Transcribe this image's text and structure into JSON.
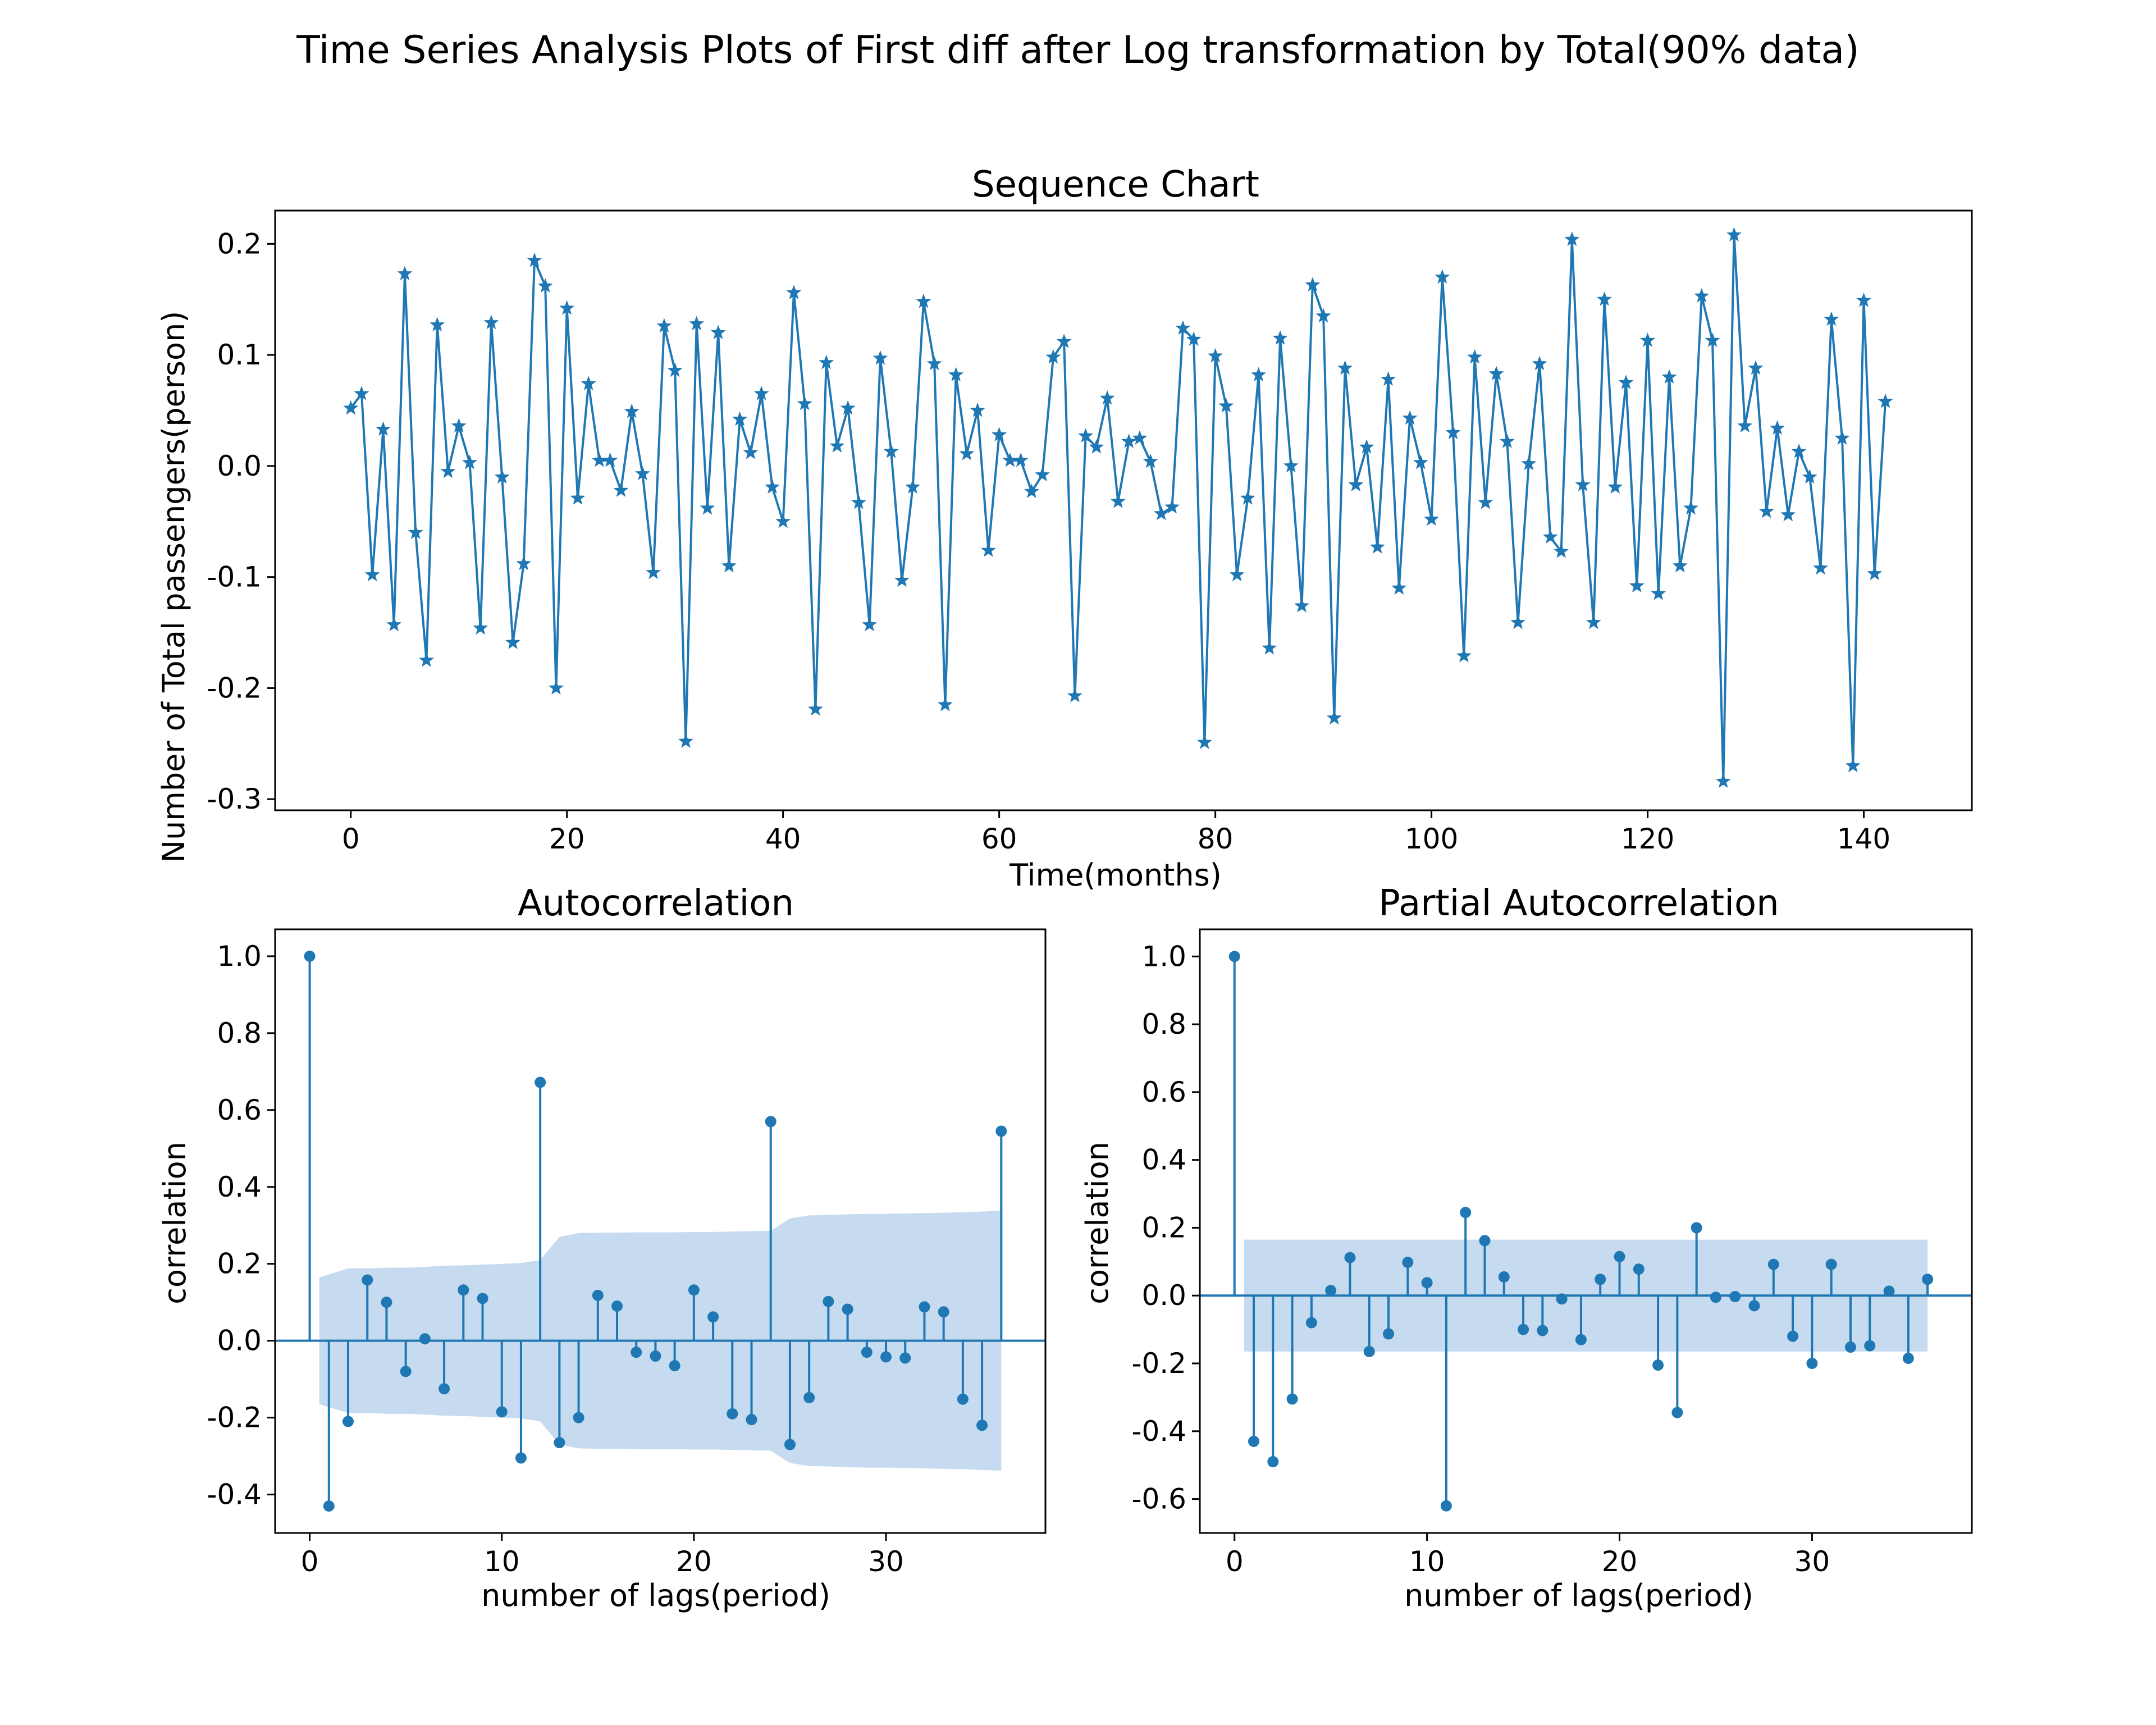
{
  "figure": {
    "suptitle": "Time Series Analysis Plots of First diff after Log transformation by Total(90% data)",
    "line_color": "#1f77b4",
    "band_color": "#c6dbef"
  },
  "chart_data": [
    {
      "id": "sequence",
      "type": "line",
      "title": "Sequence Chart",
      "xlabel": "Time(months)",
      "ylabel": "Number of Total passengers(person)",
      "marker": "star-icon",
      "xlim": [
        -7,
        150
      ],
      "ylim": [
        -0.31,
        0.23
      ],
      "xticks": [
        0,
        20,
        40,
        60,
        80,
        100,
        120,
        140
      ],
      "yticks": [
        -0.3,
        -0.2,
        -0.1,
        0.0,
        0.1,
        0.2
      ],
      "ytick_labels": [
        "-0.3",
        "-0.2",
        "-0.1",
        "0.0",
        "0.1",
        "0.2"
      ],
      "grid": false,
      "y": [
        0.052,
        0.065,
        -0.098,
        0.033,
        -0.143,
        0.173,
        -0.06,
        -0.175,
        0.127,
        -0.005,
        0.036,
        0.003,
        -0.146,
        0.129,
        -0.01,
        -0.159,
        -0.088,
        0.185,
        0.162,
        -0.2,
        0.142,
        -0.029,
        0.074,
        0.005,
        0.005,
        -0.022,
        0.049,
        -0.007,
        -0.096,
        0.126,
        0.086,
        -0.248,
        0.128,
        -0.038,
        0.12,
        -0.09,
        0.042,
        0.012,
        0.065,
        -0.019,
        -0.05,
        0.156,
        0.056,
        -0.219,
        0.093,
        0.018,
        0.052,
        -0.033,
        -0.143,
        0.097,
        0.013,
        -0.103,
        -0.019,
        0.148,
        0.092,
        -0.215,
        0.082,
        0.011,
        0.05,
        -0.076,
        0.028,
        0.005,
        0.005,
        -0.023,
        -0.008,
        0.098,
        0.112,
        -0.207,
        0.027,
        0.017,
        0.061,
        -0.032,
        0.022,
        0.025,
        0.004,
        -0.043,
        -0.037,
        0.124,
        0.114,
        -0.249,
        0.099,
        0.054,
        -0.098,
        -0.029,
        0.082,
        -0.164,
        0.115,
        0.0,
        -0.126,
        0.163,
        0.135,
        -0.227,
        0.088,
        -0.017,
        0.017,
        -0.073,
        0.078,
        -0.11,
        0.043,
        0.003,
        -0.048,
        0.17,
        0.03,
        -0.171,
        0.098,
        -0.033,
        0.083,
        0.022,
        -0.141,
        0.002,
        0.092,
        -0.064,
        -0.077,
        0.204,
        -0.017,
        -0.141,
        0.15,
        -0.019,
        0.075,
        -0.108,
        0.113,
        -0.115,
        0.08,
        -0.09,
        -0.038,
        0.153,
        0.113,
        -0.284,
        0.208,
        0.036,
        0.088,
        -0.041,
        0.034,
        -0.044,
        0.013,
        -0.01,
        -0.092,
        0.132,
        0.025,
        -0.27,
        0.149,
        -0.097,
        0.058
      ]
    },
    {
      "id": "acf",
      "type": "stem",
      "title": "Autocorrelation",
      "xlabel": "number of lags(period)",
      "ylabel": "correlation",
      "xlim": [
        -1.8,
        38.3
      ],
      "ylim": [
        -0.5,
        1.07
      ],
      "xticks": [
        0,
        10,
        20,
        30
      ],
      "yticks": [
        -0.4,
        -0.2,
        0.0,
        0.2,
        0.4,
        0.6,
        0.8,
        1.0
      ],
      "ytick_labels": [
        "-0.4",
        "-0.2",
        "0.0",
        "0.2",
        "0.4",
        "0.6",
        "0.8",
        "1.0"
      ],
      "values": [
        1.0,
        -0.43,
        -0.21,
        0.158,
        0.1,
        -0.08,
        0.005,
        -0.125,
        0.132,
        0.11,
        -0.185,
        -0.305,
        0.672,
        -0.265,
        -0.2,
        0.118,
        0.09,
        -0.03,
        -0.04,
        -0.065,
        0.132,
        0.062,
        -0.19,
        -0.205,
        0.57,
        -0.27,
        -0.148,
        0.102,
        0.082,
        -0.03,
        -0.042,
        -0.045,
        0.088,
        0.075,
        -0.152,
        -0.22,
        0.545
      ],
      "confint_upper": [
        0.165,
        0.188,
        0.188,
        0.19,
        0.19,
        0.192,
        0.195,
        0.196,
        0.198,
        0.2,
        0.202,
        0.21,
        0.27,
        0.28,
        0.281,
        0.281,
        0.282,
        0.282,
        0.282,
        0.283,
        0.283,
        0.284,
        0.285,
        0.286,
        0.318,
        0.326,
        0.327,
        0.329,
        0.33,
        0.33,
        0.331,
        0.332,
        0.333,
        0.334,
        0.336,
        0.338
      ],
      "grid": false
    },
    {
      "id": "pacf",
      "type": "stem",
      "title": "Partial Autocorrelation",
      "xlabel": "number of lags(period)",
      "ylabel": "correlation",
      "xlim": [
        -1.8,
        38.3
      ],
      "ylim": [
        -0.7,
        1.08
      ],
      "xticks": [
        0,
        10,
        20,
        30
      ],
      "yticks": [
        -0.6,
        -0.4,
        -0.2,
        0.0,
        0.2,
        0.4,
        0.6,
        0.8,
        1.0
      ],
      "ytick_labels": [
        "-0.6",
        "-0.4",
        "-0.2",
        "0.0",
        "0.2",
        "0.4",
        "0.6",
        "0.8",
        "1.0"
      ],
      "values": [
        1.0,
        -0.43,
        -0.49,
        -0.305,
        -0.08,
        0.015,
        0.112,
        -0.165,
        -0.113,
        0.098,
        0.038,
        -0.62,
        0.245,
        0.162,
        0.055,
        -0.1,
        -0.103,
        -0.01,
        -0.13,
        0.048,
        0.115,
        0.078,
        -0.205,
        -0.345,
        0.2,
        -0.005,
        -0.003,
        -0.03,
        0.092,
        -0.12,
        -0.2,
        0.092,
        -0.152,
        -0.148,
        0.013,
        -0.185,
        0.048
      ],
      "confint_upper": 0.165,
      "grid": false
    }
  ]
}
